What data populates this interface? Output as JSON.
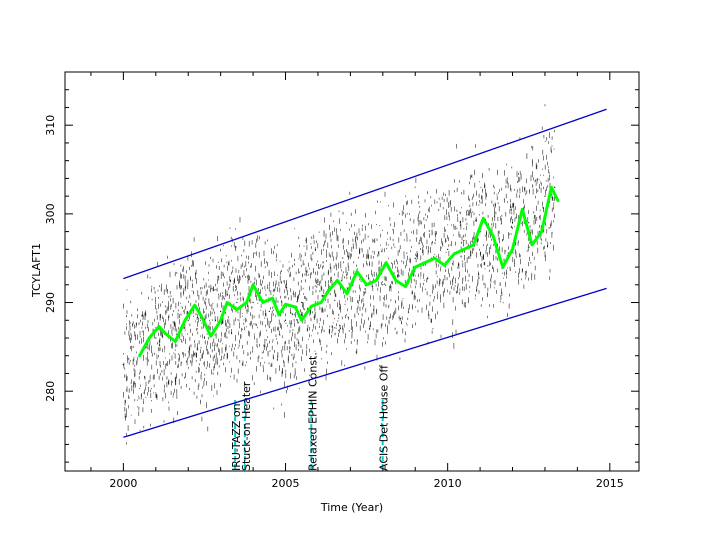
{
  "chart_data": {
    "type": "scatter",
    "title": "",
    "xlabel": "Time (Year)",
    "ylabel": "TCYLAFT1",
    "xlim": [
      1998.2,
      2015.9
    ],
    "ylim": [
      271,
      316
    ],
    "x_major_ticks": [
      2000,
      2005,
      2010,
      2015
    ],
    "y_major_ticks": [
      280,
      290,
      300,
      310
    ],
    "grid": false,
    "legend": "none",
    "colors": {
      "data": "#000000",
      "trend": "#00ff00",
      "envelope": "#0000cc",
      "events": "#00cccc"
    },
    "series": [
      {
        "values": [
          [
            2000.0,
            283
          ],
          [
            2000.5,
            284
          ],
          [
            2001.0,
            286
          ],
          [
            2001.5,
            286
          ],
          [
            2002.0,
            288
          ],
          [
            2002.5,
            286
          ],
          [
            2003.0,
            289
          ],
          [
            2003.5,
            290
          ],
          [
            2004.0,
            290
          ],
          [
            2004.5,
            289
          ],
          [
            2005.0,
            288
          ],
          [
            2005.5,
            290
          ],
          [
            2006.0,
            292
          ],
          [
            2006.5,
            292
          ],
          [
            2007.0,
            292
          ],
          [
            2007.5,
            293
          ],
          [
            2008.0,
            292
          ],
          [
            2008.5,
            293
          ],
          [
            2009.0,
            295
          ],
          [
            2009.5,
            295
          ],
          [
            2010.0,
            296
          ],
          [
            2010.5,
            297
          ],
          [
            2011.0,
            298
          ],
          [
            2011.5,
            296
          ],
          [
            2012.0,
            299
          ],
          [
            2012.5,
            299
          ],
          [
            2013.0,
            302
          ],
          [
            2013.3,
            303
          ]
        ]
      },
      {
        "values": [
          [
            2000.5,
            284.0
          ],
          [
            2000.8,
            286.0
          ],
          [
            2001.1,
            287.3
          ],
          [
            2001.3,
            286.5
          ],
          [
            2001.6,
            285.6
          ],
          [
            2001.9,
            288.0
          ],
          [
            2002.2,
            289.7
          ],
          [
            2002.4,
            288.5
          ],
          [
            2002.7,
            286.2
          ],
          [
            2003.0,
            288.0
          ],
          [
            2003.2,
            290.0
          ],
          [
            2003.5,
            289.2
          ],
          [
            2003.8,
            290.0
          ],
          [
            2004.0,
            292.0
          ],
          [
            2004.3,
            290.0
          ],
          [
            2004.6,
            290.5
          ],
          [
            2004.8,
            288.6
          ],
          [
            2005.0,
            289.8
          ],
          [
            2005.3,
            289.5
          ],
          [
            2005.5,
            288.0
          ],
          [
            2005.8,
            289.6
          ],
          [
            2006.1,
            290.0
          ],
          [
            2006.3,
            291.2
          ],
          [
            2006.6,
            292.5
          ],
          [
            2006.9,
            291.0
          ],
          [
            2007.2,
            293.5
          ],
          [
            2007.5,
            292.0
          ],
          [
            2007.8,
            292.5
          ],
          [
            2008.1,
            294.5
          ],
          [
            2008.4,
            292.5
          ],
          [
            2008.7,
            291.8
          ],
          [
            2009.0,
            294.0
          ],
          [
            2009.3,
            294.5
          ],
          [
            2009.6,
            295.0
          ],
          [
            2009.9,
            294.2
          ],
          [
            2010.2,
            295.5
          ],
          [
            2010.5,
            296.0
          ],
          [
            2010.8,
            296.5
          ],
          [
            2011.1,
            299.5
          ],
          [
            2011.4,
            297.5
          ],
          [
            2011.7,
            294.0
          ],
          [
            2012.0,
            296.0
          ],
          [
            2012.3,
            300.5
          ],
          [
            2012.6,
            296.5
          ],
          [
            2012.9,
            298.0
          ],
          [
            2013.2,
            303.0
          ],
          [
            2013.4,
            301.5
          ]
        ]
      },
      {
        "values": [
          [
            2000.0,
            292.7
          ],
          [
            2014.9,
            311.8
          ]
        ]
      },
      {
        "values": [
          [
            2000.0,
            274.8
          ],
          [
            2014.9,
            291.6
          ]
        ]
      }
    ],
    "annotations": [
      {
        "x": 2003.6,
        "label": "IRU-TAZZ on"
      },
      {
        "x": 2003.9,
        "label": "Stuck-on Heater"
      },
      {
        "x": 2005.95,
        "label": "Relaxed EPHIN Const."
      },
      {
        "x": 2008.15,
        "label": "ACIS Det House Off"
      }
    ]
  }
}
